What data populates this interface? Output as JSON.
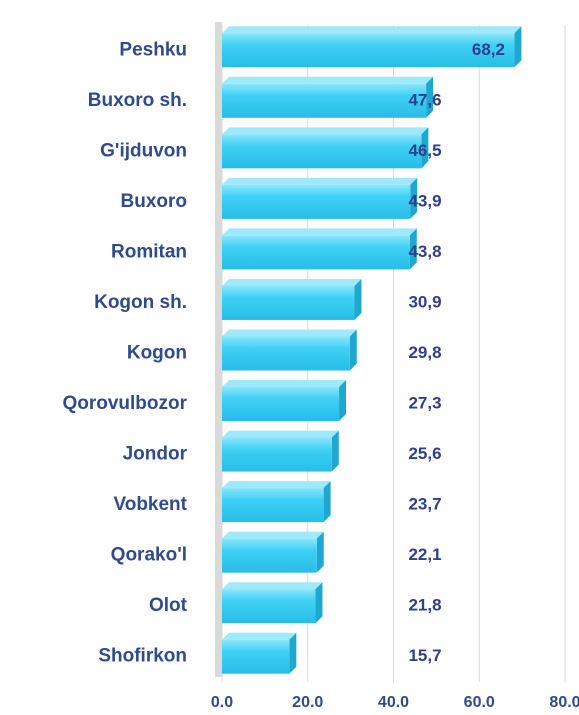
{
  "chart_data": {
    "type": "bar",
    "orientation": "horizontal",
    "categories": [
      "Peshku",
      "Buxoro sh.",
      "G'ijduvon",
      "Buxoro",
      "Romitan",
      "Kogon sh.",
      "Kogon",
      "Qorovulbozor",
      "Jondor",
      "Vobkent",
      "Qorako'l",
      "Olot",
      "Shofirkon"
    ],
    "values": [
      68.2,
      47.6,
      46.5,
      43.9,
      43.8,
      30.9,
      29.8,
      27.3,
      25.6,
      23.7,
      22.1,
      21.8,
      15.7
    ],
    "value_labels": [
      "68,2",
      "47,6",
      "46,5",
      "43,9",
      "43,8",
      "30,9",
      "29,8",
      "27,3",
      "25,6",
      "23,7",
      "22,1",
      "21,8",
      "15,7"
    ],
    "color": "#3fd0f5",
    "xlim": [
      0,
      80
    ],
    "xticks": [
      {
        "value": 0,
        "label": "0.0"
      },
      {
        "value": 20,
        "label": "20.0"
      },
      {
        "value": 40,
        "label": "40.0"
      },
      {
        "value": 60,
        "label": "60.0"
      },
      {
        "value": 80,
        "label": "80.0"
      }
    ],
    "grid": true
  }
}
